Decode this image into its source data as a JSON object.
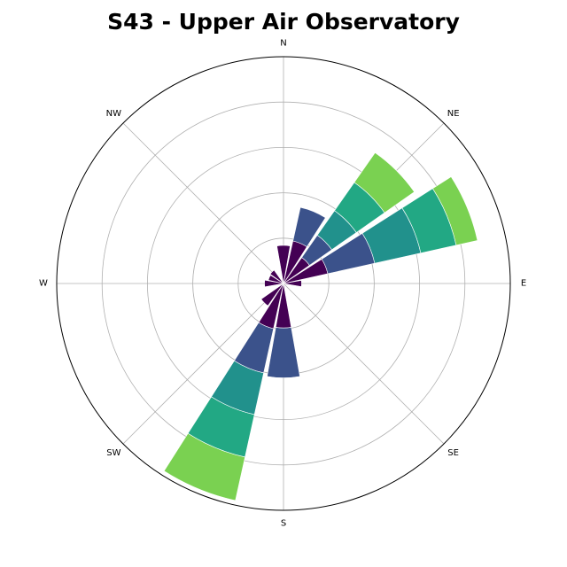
{
  "chart_data": {
    "type": "windrose",
    "title": "S43 - Upper Air Observatory",
    "direction_labels": [
      "E",
      "NE",
      "N",
      "NW",
      "W",
      "SW",
      "S",
      "SE"
    ],
    "label_angles_deg": [
      0,
      45,
      90,
      135,
      180,
      225,
      270,
      315
    ],
    "radial_grid": [
      5,
      10,
      15,
      20,
      25
    ],
    "r_max": 25,
    "sector_width_deg": 20,
    "bin_colors": [
      "#440154",
      "#3b528b",
      "#21918c",
      "#22a884",
      "#7ad151"
    ],
    "sectors": [
      {
        "direction": "N",
        "angle_deg": 90,
        "stacks": [
          4.2
        ]
      },
      {
        "direction": "NNE",
        "angle_deg": 67.5,
        "stacks": [
          4.8,
          8.6
        ]
      },
      {
        "direction": "NE",
        "angle_deg": 45,
        "stacks": [
          3.5,
          6.5,
          9.8,
          13.6,
          17.6
        ]
      },
      {
        "direction": "ENE",
        "angle_deg": 22.5,
        "stacks": [
          5.0,
          10.3,
          15.5,
          19.5,
          21.9
        ]
      },
      {
        "direction": "E",
        "angle_deg": 0,
        "stacks": [
          2.0
        ]
      },
      {
        "direction": "S",
        "angle_deg": 270,
        "stacks": [
          4.9,
          10.4
        ]
      },
      {
        "direction": "SSW",
        "angle_deg": 247.5,
        "stacks": [
          5.1,
          10.1,
          14.8,
          19.6,
          24.5
        ]
      },
      {
        "direction": "SW",
        "angle_deg": 225,
        "stacks": [
          3.0
        ]
      },
      {
        "direction": "W",
        "angle_deg": 180,
        "stacks": [
          2.1
        ]
      },
      {
        "direction": "WNW",
        "angle_deg": 157.5,
        "stacks": [
          1.7
        ]
      },
      {
        "direction": "NW",
        "angle_deg": 135,
        "stacks": [
          1.8
        ]
      }
    ]
  }
}
